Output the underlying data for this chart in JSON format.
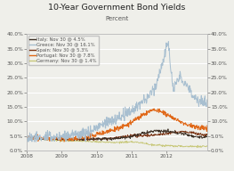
{
  "title": "10-Year Government Bond Yields",
  "subtitle": "Percent",
  "ylim": [
    0.0,
    0.4
  ],
  "yticks": [
    0.0,
    0.05,
    0.1,
    0.15,
    0.2,
    0.25,
    0.3,
    0.35,
    0.4
  ],
  "ytick_labels": [
    "0.0%",
    "5.0%",
    "10.0%",
    "15.0%",
    "20.0%",
    "25.0%",
    "30.0%",
    "35.0%",
    "40.0%"
  ],
  "xlim_start": 2008.0,
  "xlim_end": 2013.17,
  "xticks": [
    2008,
    2009,
    2010,
    2011,
    2012
  ],
  "xtick_labels": [
    "2008",
    "2009",
    "2010",
    "2011",
    "2012"
  ],
  "legend": [
    {
      "label": "Italy: Nov 30 @ 4.5%",
      "color": "#3d3025"
    },
    {
      "label": "Greece: Nov 30 @ 16.1%",
      "color": "#a8bfd0"
    },
    {
      "label": "Spain: Nov 30 @ 5.3%",
      "color": "#7a3515"
    },
    {
      "label": "Portugal: Nov 30 @ 7.8%",
      "color": "#e06818"
    },
    {
      "label": "Germany: Nov 30 @ 1.4%",
      "color": "#c8c87a"
    }
  ],
  "background_color": "#efefea",
  "plot_bg_color": "#efefea",
  "grid_color": "#ffffff",
  "title_fontsize": 6.8,
  "subtitle_fontsize": 5.0,
  "legend_fontsize": 3.8,
  "tick_fontsize": 4.2,
  "tick_color": "#555555"
}
